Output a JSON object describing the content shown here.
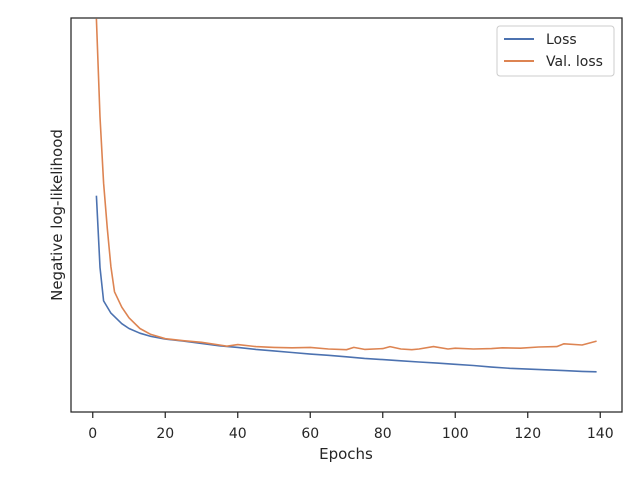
{
  "chart_data": {
    "type": "line",
    "xlabel": "Epochs",
    "ylabel": "Negative log-likelihood",
    "xlim": [
      -6,
      146
    ],
    "ylim": [
      0,
      1
    ],
    "x_ticks": [
      0,
      20,
      40,
      60,
      80,
      100,
      120,
      140
    ],
    "y_ticks_shown": false,
    "grid": false,
    "legend_position": "top-right",
    "series": [
      {
        "name": "Loss",
        "color": "#4c72b0",
        "x": [
          1,
          2,
          3,
          5,
          8,
          10,
          13,
          16,
          20,
          25,
          30,
          35,
          40,
          45,
          50,
          55,
          60,
          65,
          70,
          75,
          80,
          85,
          90,
          95,
          100,
          105,
          110,
          115,
          120,
          125,
          130,
          135,
          139
        ],
        "y": [
          0.549,
          0.367,
          0.282,
          0.251,
          0.224,
          0.212,
          0.2,
          0.192,
          0.185,
          0.18,
          0.174,
          0.168,
          0.164,
          0.159,
          0.155,
          0.151,
          0.147,
          0.144,
          0.14,
          0.136,
          0.133,
          0.13,
          0.127,
          0.124,
          0.121,
          0.118,
          0.114,
          0.111,
          0.109,
          0.107,
          0.105,
          0.103,
          0.102
        ]
      },
      {
        "name": "Val. loss",
        "color": "#dd8452",
        "x": [
          1,
          2,
          3,
          4,
          5,
          6,
          8,
          10,
          13,
          16,
          20,
          25,
          30,
          35,
          37,
          40,
          45,
          50,
          55,
          60,
          65,
          70,
          72,
          75,
          80,
          82,
          85,
          88,
          90,
          94,
          98,
          100,
          105,
          110,
          113,
          118,
          123,
          128,
          130,
          135,
          139
        ],
        "y": [
          0.998,
          0.749,
          0.581,
          0.466,
          0.369,
          0.305,
          0.266,
          0.239,
          0.212,
          0.197,
          0.186,
          0.181,
          0.177,
          0.17,
          0.167,
          0.171,
          0.166,
          0.164,
          0.163,
          0.164,
          0.16,
          0.158,
          0.164,
          0.159,
          0.161,
          0.166,
          0.16,
          0.158,
          0.16,
          0.166,
          0.16,
          0.162,
          0.16,
          0.161,
          0.163,
          0.162,
          0.165,
          0.166,
          0.173,
          0.17,
          0.18
        ]
      }
    ]
  }
}
